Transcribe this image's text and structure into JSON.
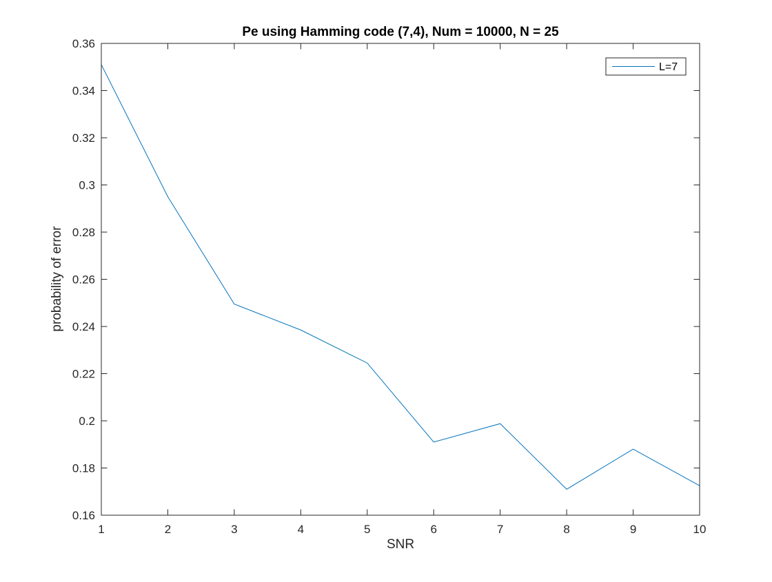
{
  "chart_data": {
    "type": "line",
    "title": "Pe using Hamming code (7,4), Num = 10000, N = 25",
    "xlabel": "SNR",
    "ylabel": "probability of error",
    "xlim": [
      1,
      10
    ],
    "ylim": [
      0.16,
      0.36
    ],
    "xticks": [
      1,
      2,
      3,
      4,
      5,
      6,
      7,
      8,
      9,
      10
    ],
    "xtick_labels": [
      "1",
      "2",
      "3",
      "4",
      "5",
      "6",
      "7",
      "8",
      "9",
      "10"
    ],
    "yticks": [
      0.16,
      0.18,
      0.2,
      0.22,
      0.24,
      0.26,
      0.28,
      0.3,
      0.32,
      0.34,
      0.36
    ],
    "ytick_labels": [
      "0.16",
      "0.18",
      "0.2",
      "0.22",
      "0.24",
      "0.26",
      "0.28",
      "0.3",
      "0.32",
      "0.34",
      "0.36"
    ],
    "grid": false,
    "legend_position": "top-right",
    "x": [
      1,
      2,
      3,
      4,
      5,
      6,
      7,
      8,
      9,
      10
    ],
    "series": [
      {
        "name": "L=7",
        "color": "#0072BD",
        "values": [
          0.351,
          0.295,
          0.2495,
          0.2385,
          0.2245,
          0.191,
          0.1988,
          0.171,
          0.188,
          0.1725
        ]
      }
    ]
  }
}
